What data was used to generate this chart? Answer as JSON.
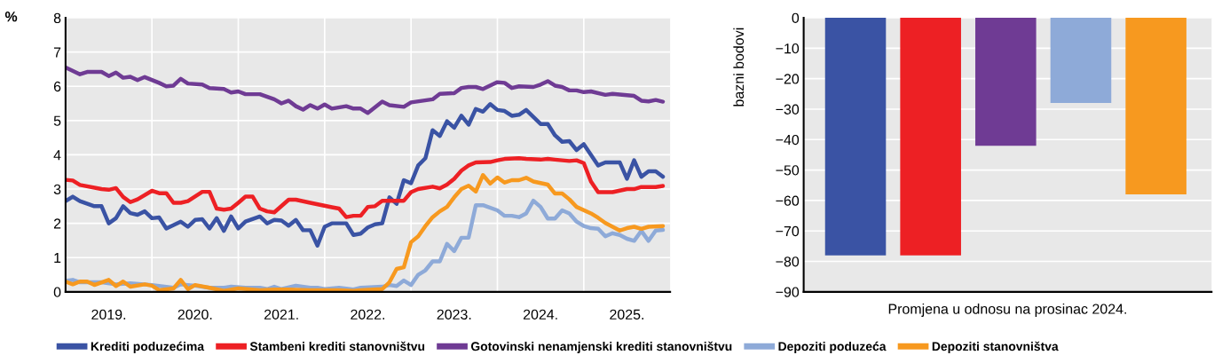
{
  "chart_data": [
    {
      "type": "line",
      "ylabel": "%",
      "xlim": [
        "2019-01-01",
        "2026-01-01"
      ],
      "ylim": [
        0,
        8
      ],
      "yticks": [
        0,
        1,
        2,
        3,
        4,
        5,
        6,
        7,
        8
      ],
      "xticks": [
        {
          "value": "2019-07-01",
          "label": "2019."
        },
        {
          "value": "2020-01-01",
          "label": null
        },
        {
          "value": "2020-07-01",
          "label": "2020."
        },
        {
          "value": "2021-01-01",
          "label": null
        },
        {
          "value": "2021-07-01",
          "label": "2021."
        },
        {
          "value": "2022-01-01",
          "label": null
        },
        {
          "value": "2022-07-01",
          "label": "2022."
        },
        {
          "value": "2023-01-01",
          "label": null
        },
        {
          "value": "2023-07-01",
          "label": "2023."
        },
        {
          "value": "2024-01-01",
          "label": null
        },
        {
          "value": "2024-07-01",
          "label": "2024."
        },
        {
          "value": "2025-01-01",
          "label": null
        },
        {
          "value": "2025-07-01",
          "label": "2025."
        }
      ],
      "grid": true,
      "legend": "bottom",
      "marker": "none",
      "line_style": "solid",
      "series": [
        {
          "name": "Krediti poduzećima",
          "color": "#3a53a4",
          "x": [
            "2019-01",
            "2019-02",
            "2019-03",
            "2019-05",
            "2019-06",
            "2019-07",
            "2019-08",
            "2019-09",
            "2019-10",
            "2019-11",
            "2019-12",
            "2020-01",
            "2020-02",
            "2020-03",
            "2020-05",
            "2020-06",
            "2020-07",
            "2020-08",
            "2020-09",
            "2020-10",
            "2020-11",
            "2020-12",
            "2021-01",
            "2021-02",
            "2021-04",
            "2021-05",
            "2021-06",
            "2021-07",
            "2021-08",
            "2021-09",
            "2021-10",
            "2021-11",
            "2021-12",
            "2022-01",
            "2022-02",
            "2022-04",
            "2022-05",
            "2022-06",
            "2022-07",
            "2022-08",
            "2022-09",
            "2022-10",
            "2022-11",
            "2022-12",
            "2023-01",
            "2023-02",
            "2023-03",
            "2023-04",
            "2023-05",
            "2023-06",
            "2023-07",
            "2023-08",
            "2023-09",
            "2023-10",
            "2023-11",
            "2023-12",
            "2024-01",
            "2024-02",
            "2024-03",
            "2024-04",
            "2024-05",
            "2024-07",
            "2024-08",
            "2024-09",
            "2024-10",
            "2024-11",
            "2024-12",
            "2025-01",
            "2025-03",
            "2025-04",
            "2025-06",
            "2025-07",
            "2025-08",
            "2025-09",
            "2025-10",
            "2025-11",
            "2025-12"
          ],
          "values": [
            2.65,
            2.78,
            2.65,
            2.5,
            2.5,
            2.0,
            2.15,
            2.5,
            2.3,
            2.25,
            2.35,
            2.15,
            2.17,
            1.85,
            2.05,
            1.9,
            2.1,
            2.12,
            1.85,
            2.15,
            1.78,
            2.2,
            1.85,
            2.05,
            2.2,
            2.0,
            2.1,
            2.08,
            1.93,
            2.1,
            1.8,
            1.8,
            1.35,
            1.9,
            2.0,
            2.0,
            1.66,
            1.7,
            1.88,
            1.97,
            2.0,
            2.76,
            2.57,
            3.26,
            3.17,
            3.69,
            3.9,
            4.72,
            4.55,
            4.98,
            4.79,
            5.14,
            4.88,
            5.34,
            5.26,
            5.48,
            5.31,
            5.28,
            5.14,
            5.17,
            5.31,
            4.9,
            4.9,
            4.57,
            4.38,
            4.4,
            4.14,
            4.31,
            3.69,
            3.78,
            3.78,
            3.3,
            3.84,
            3.36,
            3.52,
            3.52,
            3.36
          ]
        },
        {
          "name": "Stambeni krediti stanovništvu",
          "color": "#ed2024",
          "x": [
            "2019-01",
            "2019-02",
            "2019-03",
            "2019-06",
            "2019-07",
            "2019-08",
            "2019-09",
            "2019-10",
            "2019-11",
            "2020-01",
            "2020-02",
            "2020-03",
            "2020-04",
            "2020-05",
            "2020-06",
            "2020-08",
            "2020-09",
            "2020-10",
            "2020-11",
            "2020-12",
            "2021-01",
            "2021-02",
            "2021-03",
            "2021-04",
            "2021-05",
            "2021-06",
            "2021-08",
            "2021-09",
            "2021-11",
            "2022-02",
            "2022-03",
            "2022-04",
            "2022-05",
            "2022-06",
            "2022-07",
            "2022-08",
            "2022-09",
            "2022-10",
            "2022-12",
            "2023-01",
            "2023-02",
            "2023-04",
            "2023-05",
            "2023-06",
            "2023-07",
            "2023-08",
            "2023-09",
            "2023-10",
            "2023-12",
            "2024-01",
            "2024-02",
            "2024-04",
            "2024-05",
            "2024-07",
            "2024-08",
            "2024-09",
            "2024-10",
            "2024-11",
            "2024-12",
            "2025-01",
            "2025-02",
            "2025-03",
            "2025-05",
            "2025-07",
            "2025-08",
            "2025-09",
            "2025-11",
            "2025-12"
          ],
          "values": [
            3.27,
            3.25,
            3.12,
            3.0,
            2.98,
            3.03,
            2.77,
            2.62,
            2.7,
            2.95,
            2.88,
            2.88,
            2.6,
            2.6,
            2.65,
            2.92,
            2.92,
            2.43,
            2.4,
            2.43,
            2.6,
            2.78,
            2.78,
            2.43,
            2.35,
            2.32,
            2.69,
            2.69,
            2.6,
            2.47,
            2.43,
            2.18,
            2.22,
            2.22,
            2.48,
            2.5,
            2.66,
            2.66,
            2.66,
            2.91,
            3.0,
            3.07,
            3.02,
            3.13,
            3.3,
            3.54,
            3.69,
            3.78,
            3.79,
            3.84,
            3.88,
            3.9,
            3.88,
            3.86,
            3.88,
            3.86,
            3.84,
            3.82,
            3.84,
            3.76,
            3.22,
            2.91,
            2.91,
            3.0,
            3.0,
            3.06,
            3.06,
            3.09
          ]
        },
        {
          "name": "Gotovinski nenamjenski krediti stanovništvu",
          "color": "#6f3b94",
          "x": [
            "2019-01",
            "2019-03",
            "2019-04",
            "2019-06",
            "2019-07",
            "2019-08",
            "2019-09",
            "2019-10",
            "2019-11",
            "2019-12",
            "2020-02",
            "2020-03",
            "2020-04",
            "2020-05",
            "2020-06",
            "2020-08",
            "2020-09",
            "2020-11",
            "2020-12",
            "2021-01",
            "2021-02",
            "2021-04",
            "2021-06",
            "2021-07",
            "2021-08",
            "2021-09",
            "2021-10",
            "2021-11",
            "2021-12",
            "2022-01",
            "2022-02",
            "2022-04",
            "2022-05",
            "2022-06",
            "2022-07",
            "2022-09",
            "2022-10",
            "2022-12",
            "2023-01",
            "2023-04",
            "2023-05",
            "2023-07",
            "2023-08",
            "2023-09",
            "2023-10",
            "2023-11",
            "2024-01",
            "2024-02",
            "2024-03",
            "2024-04",
            "2024-06",
            "2024-07",
            "2024-08",
            "2024-09",
            "2024-10",
            "2024-11",
            "2024-12",
            "2025-01",
            "2025-02",
            "2025-04",
            "2025-05",
            "2025-08",
            "2025-09",
            "2025-10",
            "2025-11",
            "2025-12"
          ],
          "values": [
            6.55,
            6.35,
            6.42,
            6.42,
            6.3,
            6.4,
            6.25,
            6.28,
            6.18,
            6.27,
            6.1,
            6.0,
            6.02,
            6.22,
            6.08,
            6.05,
            5.95,
            5.92,
            5.82,
            5.85,
            5.77,
            5.77,
            5.62,
            5.5,
            5.58,
            5.42,
            5.32,
            5.45,
            5.35,
            5.47,
            5.35,
            5.42,
            5.35,
            5.35,
            5.22,
            5.55,
            5.45,
            5.4,
            5.53,
            5.62,
            5.78,
            5.8,
            5.95,
            5.98,
            5.98,
            5.92,
            6.12,
            6.1,
            5.95,
            6.0,
            5.98,
            6.05,
            6.15,
            6.02,
            5.98,
            5.88,
            5.88,
            5.83,
            5.85,
            5.75,
            5.78,
            5.72,
            5.58,
            5.56,
            5.6,
            5.55
          ]
        },
        {
          "name": "Depoziti poduzeća",
          "color": "#8eaad8",
          "x": [
            "2019-01",
            "2019-02",
            "2019-03",
            "2019-06",
            "2019-08",
            "2019-10",
            "2020-01",
            "2020-04",
            "2020-05",
            "2020-07",
            "2020-09",
            "2020-11",
            "2020-12",
            "2021-02",
            "2021-04",
            "2021-05",
            "2021-06",
            "2021-07",
            "2021-09",
            "2021-11",
            "2021-12",
            "2022-01",
            "2022-03",
            "2022-05",
            "2022-06",
            "2022-09",
            "2022-10",
            "2022-11",
            "2022-12",
            "2023-01",
            "2023-02",
            "2023-03",
            "2023-04",
            "2023-05",
            "2023-06",
            "2023-07",
            "2023-08",
            "2023-09",
            "2023-10",
            "2023-11",
            "2024-01",
            "2024-02",
            "2024-03",
            "2024-04",
            "2024-05",
            "2024-06",
            "2024-07",
            "2024-08",
            "2024-09",
            "2024-10",
            "2024-11",
            "2024-12",
            "2025-01",
            "2025-02",
            "2025-03",
            "2025-04",
            "2025-05",
            "2025-06",
            "2025-07",
            "2025-08",
            "2025-09",
            "2025-10",
            "2025-11",
            "2025-12"
          ],
          "values": [
            0.32,
            0.35,
            0.28,
            0.28,
            0.22,
            0.25,
            0.2,
            0.12,
            0.22,
            0.18,
            0.12,
            0.12,
            0.15,
            0.12,
            0.12,
            0.08,
            0.15,
            0.08,
            0.18,
            0.12,
            0.12,
            0.08,
            0.12,
            0.07,
            0.12,
            0.15,
            0.2,
            0.17,
            0.33,
            0.2,
            0.5,
            0.63,
            0.89,
            0.89,
            1.4,
            1.19,
            1.58,
            1.58,
            2.53,
            2.53,
            2.38,
            2.22,
            2.22,
            2.18,
            2.29,
            2.66,
            2.48,
            2.14,
            2.14,
            2.38,
            2.29,
            2.05,
            1.92,
            1.86,
            1.84,
            1.62,
            1.71,
            1.66,
            1.55,
            1.49,
            1.78,
            1.49,
            1.79,
            1.81
          ]
        },
        {
          "name": "Depoziti stanovništva",
          "color": "#f7991f",
          "x": [
            "2019-01",
            "2019-02",
            "2019-03",
            "2019-04",
            "2019-05",
            "2019-07",
            "2019-08",
            "2019-09",
            "2019-10",
            "2019-12",
            "2020-01",
            "2020-02",
            "2020-04",
            "2020-05",
            "2020-06",
            "2020-07",
            "2020-09",
            "2020-11",
            "2021-01",
            "2021-04",
            "2021-06",
            "2021-08",
            "2021-11",
            "2022-03",
            "2022-05",
            "2022-06",
            "2022-09",
            "2022-10",
            "2022-11",
            "2022-12",
            "2023-01",
            "2023-02",
            "2023-03",
            "2023-04",
            "2023-05",
            "2023-06",
            "2023-07",
            "2023-08",
            "2023-09",
            "2023-10",
            "2023-11",
            "2023-12",
            "2024-01",
            "2024-02",
            "2024-03",
            "2024-04",
            "2024-05",
            "2024-06",
            "2024-08",
            "2024-09",
            "2024-10",
            "2024-11",
            "2024-12",
            "2025-02",
            "2025-03",
            "2025-04",
            "2025-06",
            "2025-07",
            "2025-08",
            "2025-09",
            "2025-10",
            "2025-12"
          ],
          "values": [
            0.3,
            0.22,
            0.3,
            0.3,
            0.2,
            0.35,
            0.17,
            0.3,
            0.15,
            0.22,
            0.18,
            0.05,
            0.1,
            0.35,
            0.08,
            0.2,
            0.12,
            0.03,
            0.1,
            0.05,
            0.07,
            0.07,
            0.05,
            0.05,
            0.03,
            0.05,
            0.08,
            0.28,
            0.67,
            0.72,
            1.45,
            1.62,
            1.92,
            2.18,
            2.35,
            2.48,
            2.76,
            3.0,
            3.1,
            2.93,
            3.41,
            3.16,
            3.34,
            3.19,
            3.26,
            3.26,
            3.33,
            3.22,
            3.13,
            2.87,
            2.87,
            2.7,
            2.48,
            2.29,
            2.16,
            2.01,
            1.79,
            1.86,
            1.9,
            1.84,
            1.9,
            1.92
          ]
        }
      ]
    },
    {
      "type": "bar",
      "ylabel": "bazni bodovi",
      "xlabel": "Promjena u odnosu na prosinac 2024.",
      "categories": [
        null,
        null,
        null,
        null,
        null
      ],
      "values": [
        -78,
        -78,
        -42,
        -28,
        -58
      ],
      "colors": [
        "#3a53a4",
        "#ed2024",
        "#6f3b94",
        "#8eaad8",
        "#f7991f"
      ],
      "ylim": [
        -90,
        0
      ],
      "yticks": [
        -90,
        -80,
        -70,
        -60,
        -50,
        -40,
        -30,
        -20,
        -10,
        0
      ],
      "grid": "y",
      "legend": false
    }
  ]
}
